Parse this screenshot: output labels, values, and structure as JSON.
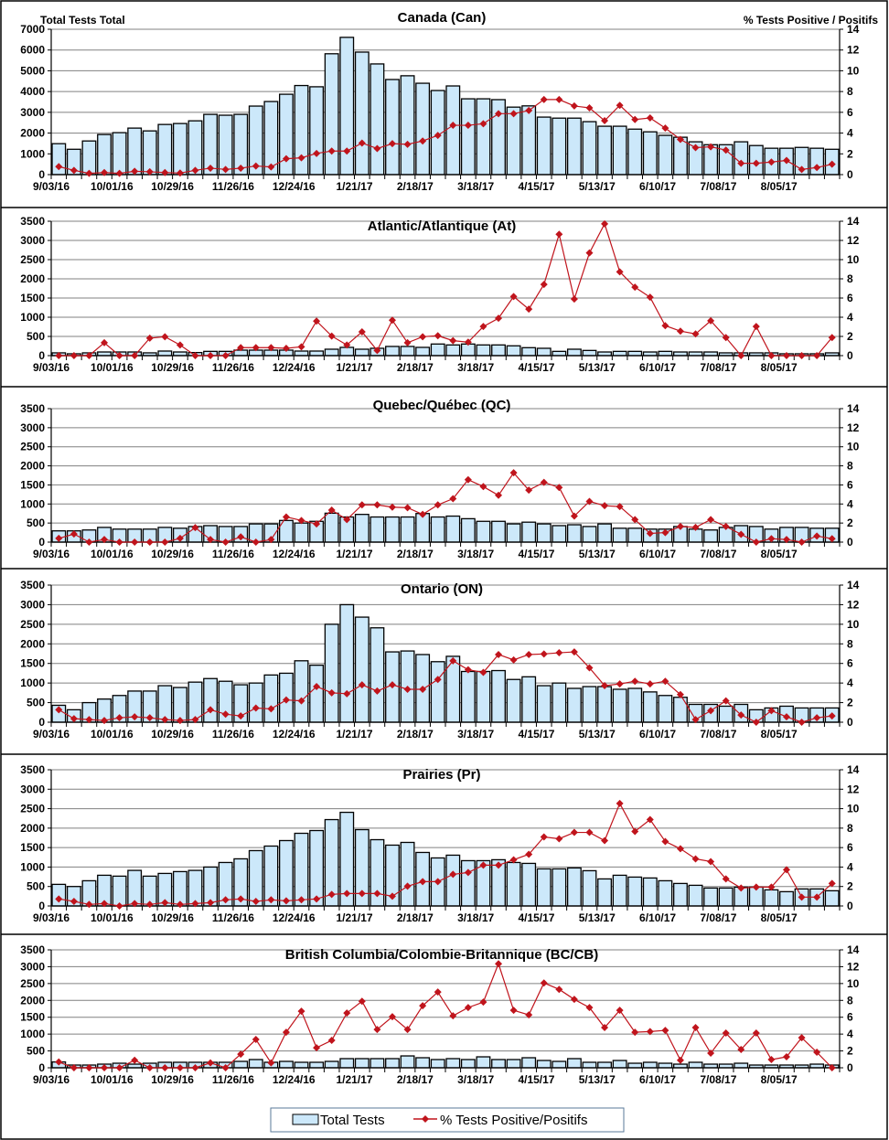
{
  "legend": {
    "bar_label": "Total Tests",
    "line_label": "% Tests Positive/Positifs"
  },
  "colors": {
    "bar_fill": "#CCE8FA",
    "bar_stroke": "#000000",
    "line": "#C0141C",
    "grid": "#808080"
  },
  "chart_data": [
    {
      "type": "bar+line",
      "title": "Canada (Can)",
      "ylabel": "Total Tests Total",
      "y2label": "% Tests Positive / Positifs",
      "ylim": [
        0,
        7000
      ],
      "yticks": [
        "0",
        "1000",
        "2000",
        "3000",
        "4000",
        "5000",
        "6000",
        "7000"
      ],
      "y2lim": [
        0,
        14
      ],
      "y2ticks": [
        "0",
        "2",
        "4",
        "6",
        "8",
        "10",
        "12",
        "14"
      ],
      "xtick_labels": [
        "9/03/16",
        "10/01/16",
        "10/29/16",
        "11/26/16",
        "12/24/16",
        "1/21/17",
        "2/18/17",
        "3/18/17",
        "4/15/17",
        "5/13/17",
        "6/10/17",
        "7/08/17",
        "8/05/17"
      ],
      "total_tests": [
        1490,
        1220,
        1620,
        1930,
        2020,
        2240,
        2105,
        2415,
        2460,
        2590,
        2900,
        2860,
        2900,
        3300,
        3520,
        3870,
        4290,
        4230,
        5820,
        6610,
        5900,
        5330,
        4580,
        4760,
        4400,
        4050,
        4270,
        3650,
        3650,
        3610,
        3250,
        3310,
        2770,
        2720,
        2720,
        2550,
        2330,
        2330,
        2190,
        2060,
        1890,
        1800,
        1580,
        1440,
        1440,
        1580,
        1400,
        1270,
        1270,
        1310,
        1270,
        1220
      ],
      "pct_positive": [
        0.77,
        0.41,
        0.12,
        0.2,
        0.12,
        0.32,
        0.27,
        0.2,
        0.15,
        0.41,
        0.62,
        0.5,
        0.62,
        0.83,
        0.74,
        1.53,
        1.62,
        2.04,
        2.27,
        2.27,
        3.04,
        2.51,
        2.98,
        2.92,
        3.24,
        3.78,
        4.75,
        4.75,
        4.9,
        5.87,
        5.87,
        6.17,
        7.23,
        7.23,
        6.61,
        6.43,
        5.19,
        6.67,
        5.31,
        5.46,
        4.48,
        3.39,
        2.6,
        2.68,
        2.36,
        1.09,
        1.09,
        1.21,
        1.36,
        0.5,
        0.68,
        1.0
      ]
    },
    {
      "type": "bar+line",
      "title": "Atlantic/Atlantique  (At)",
      "ylim": [
        0,
        3500
      ],
      "yticks": [
        "0",
        "500",
        "1000",
        "1500",
        "2000",
        "2500",
        "3000",
        "3500"
      ],
      "y2lim": [
        0,
        14
      ],
      "y2ticks": [
        "0",
        "2",
        "4",
        "6",
        "8",
        "10",
        "12",
        "14"
      ],
      "xtick_labels": [
        "9/03/16",
        "10/01/16",
        "10/29/16",
        "11/26/16",
        "12/24/16",
        "1/21/17",
        "2/18/17",
        "3/18/17",
        "4/15/17",
        "5/13/17",
        "6/10/17",
        "7/08/17",
        "8/05/17"
      ],
      "total_tests": [
        72,
        48,
        72,
        95,
        95,
        95,
        72,
        119,
        95,
        80,
        111,
        111,
        143,
        143,
        143,
        143,
        119,
        119,
        167,
        215,
        167,
        191,
        239,
        239,
        215,
        302,
        278,
        302,
        278,
        278,
        255,
        207,
        191,
        111,
        167,
        135,
        95,
        111,
        111,
        95,
        111,
        95,
        95,
        95,
        72,
        72,
        72,
        72,
        48,
        48,
        48,
        72
      ],
      "pct_positive": [
        0,
        0,
        0,
        1.34,
        0,
        0,
        1.82,
        1.97,
        1.11,
        0,
        0,
        0,
        0.83,
        0.83,
        0.83,
        0.76,
        0.92,
        3.6,
        2.04,
        1.11,
        2.48,
        0.54,
        3.69,
        1.34,
        1.97,
        2.07,
        1.56,
        1.4,
        3.03,
        3.89,
        6.15,
        4.84,
        7.42,
        12.64,
        5.89,
        10.7,
        13.73,
        8.73,
        7.13,
        6.08,
        3.12,
        2.55,
        2.26,
        3.63,
        1.88,
        0,
        3.03,
        0,
        0,
        0,
        0,
        1.88
      ]
    },
    {
      "type": "bar+line",
      "title": "Quebec/Québec (QC)",
      "ylim": [
        0,
        3500
      ],
      "yticks": [
        "0",
        "500",
        "1000",
        "1500",
        "2000",
        "2500",
        "3000",
        "3500"
      ],
      "y2lim": [
        0,
        14
      ],
      "y2ticks": [
        "0",
        "2",
        "4",
        "6",
        "8",
        "10",
        "12",
        "14"
      ],
      "xtick_labels": [
        "9/03/16",
        "10/01/16",
        "10/29/16",
        "11/26/16",
        "12/24/16",
        "1/21/17",
        "2/18/17",
        "3/18/17",
        "4/15/17",
        "5/13/17",
        "6/10/17",
        "7/08/17",
        "8/05/17"
      ],
      "total_tests": [
        295,
        295,
        318,
        386,
        341,
        341,
        341,
        386,
        364,
        409,
        432,
        409,
        409,
        477,
        477,
        568,
        500,
        545,
        758,
        659,
        727,
        659,
        659,
        659,
        750,
        659,
        682,
        614,
        545,
        545,
        477,
        523,
        477,
        432,
        455,
        409,
        477,
        364,
        364,
        341,
        341,
        409,
        341,
        318,
        386,
        432,
        409,
        341,
        386,
        386,
        364,
        364
      ],
      "pct_positive": [
        0.39,
        0.85,
        0,
        0.27,
        0,
        0,
        0,
        0,
        0.39,
        1.52,
        0.27,
        0,
        0.55,
        0,
        0.27,
        2.64,
        2.27,
        1.91,
        3.36,
        2.36,
        3.91,
        3.91,
        3.67,
        3.61,
        2.91,
        3.91,
        4.55,
        6.55,
        5.82,
        4.91,
        7.27,
        5.45,
        6.27,
        5.73,
        2.73,
        4.27,
        3.82,
        3.73,
        2.36,
        0.91,
        1.0,
        1.64,
        1.55,
        2.36,
        1.64,
        0.82,
        0,
        0.36,
        0.27,
        0,
        0.64,
        0.36
      ]
    },
    {
      "type": "bar+line",
      "title": "Ontario (ON)",
      "ylim": [
        0,
        3500
      ],
      "yticks": [
        "0",
        "500",
        "1000",
        "1500",
        "2000",
        "2500",
        "3000",
        "3500"
      ],
      "y2lim": [
        0,
        14
      ],
      "y2ticks": [
        "0",
        "2",
        "4",
        "6",
        "8",
        "10",
        "12",
        "14"
      ],
      "xtick_labels": [
        "9/03/16",
        "10/01/16",
        "10/29/16",
        "11/26/16",
        "12/24/16",
        "1/21/17",
        "2/18/17",
        "3/18/17",
        "4/15/17",
        "5/13/17",
        "6/10/17",
        "7/08/17",
        "8/05/17"
      ],
      "total_tests": [
        432,
        318,
        500,
        591,
        682,
        795,
        795,
        932,
        886,
        1023,
        1114,
        1045,
        955,
        1000,
        1205,
        1250,
        1568,
        1455,
        2500,
        3000,
        2682,
        2409,
        1795,
        1818,
        1727,
        1545,
        1682,
        1295,
        1295,
        1318,
        1091,
        1159,
        932,
        1000,
        864,
        909,
        909,
        841,
        864,
        773,
        682,
        636,
        455,
        455,
        409,
        455,
        318,
        364,
        409,
        364,
        364,
        364
      ],
      "pct_positive": [
        1.27,
        0.36,
        0.27,
        0.18,
        0.45,
        0.55,
        0.45,
        0.27,
        0.18,
        0.27,
        1.27,
        0.82,
        0.64,
        1.45,
        1.36,
        2.27,
        2.18,
        3.64,
        3.0,
        2.91,
        3.82,
        3.18,
        3.82,
        3.36,
        3.36,
        4.36,
        6.27,
        5.36,
        5.09,
        6.91,
        6.36,
        6.91,
        6.97,
        7.09,
        7.18,
        5.55,
        3.73,
        3.91,
        4.18,
        3.91,
        4.18,
        2.82,
        0.27,
        1.18,
        2.18,
        0.73,
        0,
        1.18,
        0.55,
        0,
        0.45,
        0.64
      ]
    },
    {
      "type": "bar+line",
      "title": "Prairies (Pr)",
      "ylim": [
        0,
        3500
      ],
      "yticks": [
        "0",
        "500",
        "1000",
        "1500",
        "2000",
        "2500",
        "3000",
        "3500"
      ],
      "y2lim": [
        0,
        14
      ],
      "y2ticks": [
        "0",
        "2",
        "4",
        "6",
        "8",
        "10",
        "12",
        "14"
      ],
      "xtick_labels": [
        "9/03/16",
        "10/01/16",
        "10/29/16",
        "11/26/16",
        "12/24/16",
        "1/21/17",
        "2/18/17",
        "3/18/17",
        "4/15/17",
        "5/13/17",
        "6/10/17",
        "7/08/17",
        "8/05/17"
      ],
      "total_tests": [
        555,
        500,
        648,
        789,
        766,
        914,
        766,
        836,
        883,
        914,
        1000,
        1117,
        1211,
        1422,
        1539,
        1680,
        1867,
        1938,
        2219,
        2406,
        1961,
        1703,
        1563,
        1633,
        1375,
        1234,
        1305,
        1164,
        1164,
        1188,
        1117,
        1094,
        953,
        953,
        977,
        906,
        695,
        789,
        742,
        719,
        648,
        578,
        531,
        461,
        461,
        484,
        484,
        414,
        367,
        438,
        438,
        391
      ],
      "pct_positive": [
        0.72,
        0.47,
        0.16,
        0.25,
        0,
        0.25,
        0.16,
        0.34,
        0.16,
        0.25,
        0.34,
        0.63,
        0.72,
        0.47,
        0.63,
        0.53,
        0.63,
        0.72,
        1.19,
        1.28,
        1.28,
        1.28,
        1.0,
        2.03,
        2.5,
        2.5,
        3.25,
        3.44,
        4.19,
        4.19,
        4.75,
        5.31,
        7.09,
        6.91,
        7.56,
        7.56,
        6.72,
        10.53,
        7.66,
        8.88,
        6.63,
        5.88,
        4.84,
        4.56,
        2.78,
        1.84,
        1.94,
        1.94,
        3.72,
        0.91,
        0.91,
        2.31
      ]
    },
    {
      "type": "bar+line",
      "title": "British Columbia/Colombie-Britannique (BC/CB)",
      "ylim": [
        0,
        3500
      ],
      "yticks": [
        "0",
        "500",
        "1000",
        "1500",
        "2000",
        "2500",
        "3000",
        "3500"
      ],
      "y2lim": [
        0,
        14
      ],
      "y2ticks": [
        "0",
        "2",
        "4",
        "6",
        "8",
        "10",
        "12",
        "14"
      ],
      "xtick_labels": [
        "9/03/16",
        "10/01/16",
        "10/29/16",
        "11/26/16",
        "12/24/16",
        "1/21/17",
        "2/18/17",
        "3/18/17",
        "4/15/17",
        "5/13/17",
        "6/10/17",
        "7/08/17",
        "8/05/17"
      ],
      "total_tests": [
        172,
        81,
        81,
        108,
        135,
        108,
        135,
        163,
        163,
        163,
        163,
        163,
        190,
        244,
        163,
        190,
        163,
        163,
        190,
        271,
        271,
        271,
        271,
        352,
        298,
        244,
        271,
        244,
        325,
        244,
        244,
        298,
        217,
        190,
        271,
        163,
        163,
        217,
        135,
        163,
        135,
        108,
        163,
        108,
        108,
        135,
        81,
        81,
        81,
        81,
        108,
        81
      ],
      "pct_positive": [
        0.69,
        0,
        0,
        0,
        0,
        0.9,
        0,
        0,
        0,
        0,
        0.58,
        0,
        1.62,
        3.36,
        0.58,
        4.22,
        6.71,
        2.38,
        3.25,
        6.5,
        7.9,
        4.55,
        6.06,
        4.55,
        7.36,
        8.99,
        6.17,
        7.15,
        7.8,
        12.35,
        6.82,
        6.28,
        10.07,
        9.31,
        8.12,
        7.15,
        4.77,
        6.82,
        4.22,
        4.3,
        4.44,
        0.9,
        4.77,
        1.73,
        4.12,
        2.17,
        4.12,
        0.97,
        1.3,
        3.57,
        1.84,
        0
      ]
    }
  ]
}
